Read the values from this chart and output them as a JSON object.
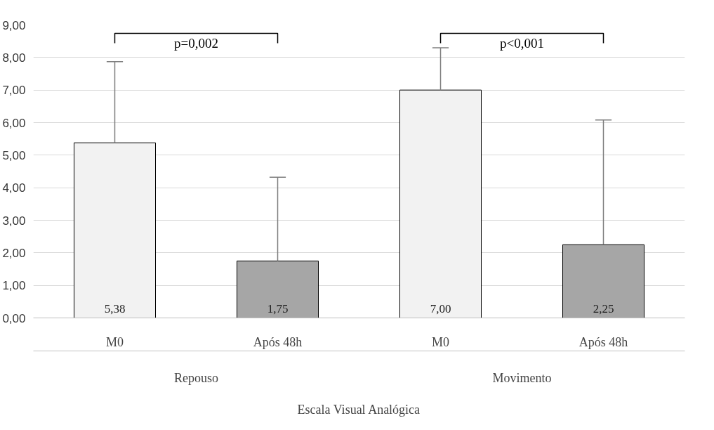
{
  "chart_data": {
    "type": "bar",
    "xlabel": "Escala Visual Analógica",
    "categories": [
      "M0",
      "Após 48h",
      "M0",
      "Após 48h"
    ],
    "values": [
      5.38,
      1.75,
      7.0,
      2.25
    ],
    "colors": [
      "#f2f2f2",
      "#a6a6a6",
      "#f2f2f2",
      "#a6a6a6"
    ],
    "errors": [
      [
        5.38,
        7.87
      ],
      [
        1.75,
        4.32
      ],
      [
        7.0,
        8.3
      ],
      [
        2.25,
        6.08
      ]
    ],
    "value_labels": [
      "5,38",
      "1,75",
      "7,00",
      "2,25"
    ],
    "annotations": [
      "p=0,002",
      "p<0,001",
      "Repouso",
      "Movimento"
    ],
    "ylim": [
      0,
      9
    ],
    "yticks": [
      {
        "value": 0,
        "label": "0,00"
      },
      {
        "value": 1,
        "label": "1,00"
      },
      {
        "value": 2,
        "label": "2,00"
      },
      {
        "value": 3,
        "label": "3,00"
      },
      {
        "value": 4,
        "label": "4,00"
      },
      {
        "value": 5,
        "label": "5,00"
      },
      {
        "value": 6,
        "label": "6,00"
      },
      {
        "value": 7,
        "label": "7,00"
      },
      {
        "value": 8,
        "label": "8,00"
      },
      {
        "value": 9,
        "label": "9,00"
      }
    ],
    "grid": "y"
  }
}
